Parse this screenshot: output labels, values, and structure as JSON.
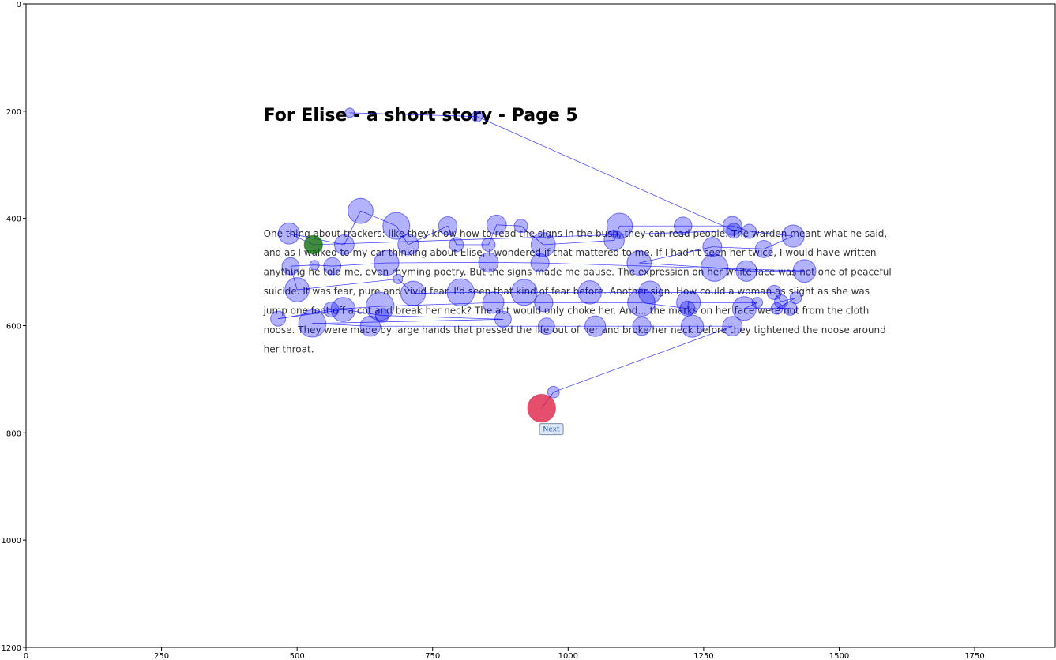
{
  "chart_data": {
    "type": "scatter",
    "xlim": [
      0,
      1900
    ],
    "ylim": [
      1200,
      0
    ],
    "x_ticks": [
      0,
      250,
      500,
      750,
      1000,
      1250,
      1500,
      1750
    ],
    "y_ticks": [
      0,
      200,
      400,
      600,
      800,
      1000,
      1200
    ],
    "grid": false,
    "page_title": "For Elise - a short story - Page 5",
    "text_lines": [
      "One thing about trackers: like they know how to read the signs in the bush, they can read people. The warden meant what he said,",
      "and as I walked to my car thinking about Elise, I wondered if that mattered to me. If I hadn't seen her twice, I would have written",
      "anything he told me, even rhyming poetry. But the signs made me pause. The expression on her white face was not one of peaceful",
      "suicide. It was fear, pure and vivid fear. I'd seen that kind of fear before. Another sign. How could a woman as slight as she was",
      "jump one foot off a cot and break her neck? The act would only choke her. And... the marks on her face were not from the cloth",
      "noose. They were made by large hands that pressed the life out of her and broke her neck before they tightened the noose around",
      "her throat."
    ],
    "button_label": "Next",
    "colors": {
      "fixation": "#0000ff",
      "first_fixation": "#006400",
      "last_fixation": "#dc143c",
      "saccade": "#0000ff"
    },
    "fixations": [
      [
        530,
        449,
        150
      ],
      [
        485,
        428,
        200
      ],
      [
        587,
        449,
        170
      ],
      [
        617,
        386,
        280
      ],
      [
        683,
        414,
        320
      ],
      [
        705,
        449,
        190
      ],
      [
        778,
        414,
        150
      ],
      [
        794,
        449,
        90
      ],
      [
        853,
        449,
        80
      ],
      [
        868,
        412,
        170
      ],
      [
        913,
        414,
        80
      ],
      [
        954,
        449,
        260
      ],
      [
        1085,
        441,
        180
      ],
      [
        1095,
        414,
        290
      ],
      [
        1212,
        414,
        140
      ],
      [
        1303,
        414,
        160
      ],
      [
        1334,
        424,
        90
      ],
      [
        1415,
        433,
        220
      ],
      [
        1361,
        457,
        130
      ],
      [
        1266,
        453,
        160
      ],
      [
        1131,
        483,
        260
      ],
      [
        1270,
        492,
        330
      ],
      [
        1329,
        498,
        190
      ],
      [
        1436,
        498,
        230
      ],
      [
        948,
        483,
        150
      ],
      [
        853,
        482,
        170
      ],
      [
        665,
        483,
        270
      ],
      [
        565,
        489,
        130
      ],
      [
        532,
        487,
        40
      ],
      [
        488,
        489,
        130
      ],
      [
        500,
        533,
        260
      ],
      [
        686,
        513,
        40
      ],
      [
        714,
        540,
        270
      ],
      [
        802,
        538,
        330
      ],
      [
        919,
        538,
        300
      ],
      [
        1040,
        538,
        240
      ],
      [
        1151,
        538,
        230
      ],
      [
        1380,
        538,
        90
      ],
      [
        1393,
        555,
        80
      ],
      [
        1420,
        548,
        60
      ],
      [
        1385,
        568,
        60
      ],
      [
        1410,
        568,
        80
      ],
      [
        1325,
        568,
        250
      ],
      [
        1349,
        557,
        50
      ],
      [
        1222,
        557,
        250
      ],
      [
        1220,
        568,
        100
      ],
      [
        1135,
        557,
        330
      ],
      [
        955,
        557,
        150
      ],
      [
        862,
        557,
        200
      ],
      [
        653,
        564,
        350
      ],
      [
        563,
        570,
        100
      ],
      [
        465,
        587,
        100
      ],
      [
        585,
        570,
        260
      ],
      [
        657,
        581,
        80
      ],
      [
        880,
        588,
        120
      ],
      [
        528,
        596,
        330
      ],
      [
        635,
        601,
        180
      ],
      [
        960,
        601,
        120
      ],
      [
        1050,
        601,
        190
      ],
      [
        1136,
        601,
        150
      ],
      [
        1229,
        601,
        220
      ],
      [
        1303,
        601,
        170
      ],
      [
        973,
        724,
        60
      ],
      [
        951,
        754,
        350
      ]
    ],
    "early_fixations": [
      [
        597,
        203,
        40
      ],
      [
        832,
        210,
        50
      ],
      [
        1306,
        423,
        100
      ]
    ]
  }
}
